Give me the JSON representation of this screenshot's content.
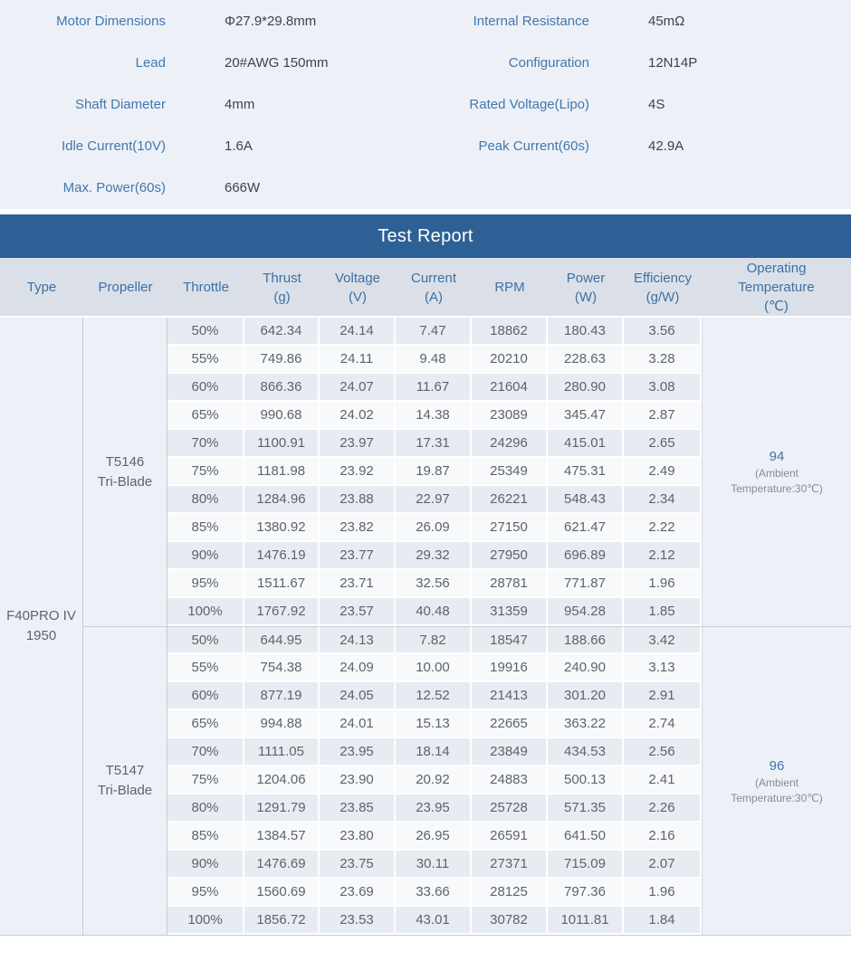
{
  "colors": {
    "accent_blue": "#3f74a9",
    "band_blue": "#2d6094",
    "header_bg": "#dbe0e8",
    "stripe_dark": "#e7ecf2",
    "stripe_light": "#f7f9fb",
    "side_bg": "#edf1f7"
  },
  "specs": {
    "rows": [
      [
        {
          "label": "Motor Dimensions",
          "value": "Φ27.9*29.8mm"
        },
        {
          "label": "Internal Resistance",
          "value": "45mΩ"
        }
      ],
      [
        {
          "label": "Lead",
          "value": "20#AWG 150mm"
        },
        {
          "label": "Configuration",
          "value": "12N14P"
        }
      ],
      [
        {
          "label": "Shaft Diameter",
          "value": "4mm"
        },
        {
          "label": "Rated Voltage(Lipo)",
          "value": "4S"
        }
      ],
      [
        {
          "label": "Idle Current(10V)",
          "value": "1.6A"
        },
        {
          "label": "Peak Current(60s)",
          "value": "42.9A"
        }
      ],
      [
        {
          "label": "Max. Power(60s)",
          "value": "666W"
        },
        null
      ]
    ]
  },
  "table": {
    "title": "Test Report",
    "headers": [
      {
        "lines": [
          "Type"
        ]
      },
      {
        "lines": [
          "Propeller"
        ]
      },
      {
        "lines": [
          "Throttle"
        ]
      },
      {
        "lines": [
          "Thrust",
          "(g)"
        ]
      },
      {
        "lines": [
          "Voltage",
          "(V)"
        ]
      },
      {
        "lines": [
          "Current",
          "(A)"
        ]
      },
      {
        "lines": [
          "RPM"
        ]
      },
      {
        "lines": [
          "Power",
          "(W)"
        ]
      },
      {
        "lines": [
          "Efficiency",
          "(g/W)"
        ]
      },
      {
        "lines": [
          "Operating",
          "Temperature",
          "(℃)"
        ]
      }
    ],
    "type_lines": [
      "F40PRO IV",
      "1950"
    ],
    "blocks": [
      {
        "propeller": [
          "T5146",
          "Tri-Blade"
        ],
        "temperature": {
          "value": "94",
          "notes": [
            "(Ambient",
            "Temperature:30℃)"
          ]
        },
        "rows": [
          [
            "50%",
            "642.34",
            "24.14",
            "7.47",
            "18862",
            "180.43",
            "3.56"
          ],
          [
            "55%",
            "749.86",
            "24.11",
            "9.48",
            "20210",
            "228.63",
            "3.28"
          ],
          [
            "60%",
            "866.36",
            "24.07",
            "11.67",
            "21604",
            "280.90",
            "3.08"
          ],
          [
            "65%",
            "990.68",
            "24.02",
            "14.38",
            "23089",
            "345.47",
            "2.87"
          ],
          [
            "70%",
            "1100.91",
            "23.97",
            "17.31",
            "24296",
            "415.01",
            "2.65"
          ],
          [
            "75%",
            "1181.98",
            "23.92",
            "19.87",
            "25349",
            "475.31",
            "2.49"
          ],
          [
            "80%",
            "1284.96",
            "23.88",
            "22.97",
            "26221",
            "548.43",
            "2.34"
          ],
          [
            "85%",
            "1380.92",
            "23.82",
            "26.09",
            "27150",
            "621.47",
            "2.22"
          ],
          [
            "90%",
            "1476.19",
            "23.77",
            "29.32",
            "27950",
            "696.89",
            "2.12"
          ],
          [
            "95%",
            "1511.67",
            "23.71",
            "32.56",
            "28781",
            "771.87",
            "1.96"
          ],
          [
            "100%",
            "1767.92",
            "23.57",
            "40.48",
            "31359",
            "954.28",
            "1.85"
          ]
        ]
      },
      {
        "propeller": [
          "T5147",
          "Tri-Blade"
        ],
        "temperature": {
          "value": "96",
          "notes": [
            "(Ambient",
            "Temperature:30℃)"
          ]
        },
        "rows": [
          [
            "50%",
            "644.95",
            "24.13",
            "7.82",
            "18547",
            "188.66",
            "3.42"
          ],
          [
            "55%",
            "754.38",
            "24.09",
            "10.00",
            "19916",
            "240.90",
            "3.13"
          ],
          [
            "60%",
            "877.19",
            "24.05",
            "12.52",
            "21413",
            "301.20",
            "2.91"
          ],
          [
            "65%",
            "994.88",
            "24.01",
            "15.13",
            "22665",
            "363.22",
            "2.74"
          ],
          [
            "70%",
            "1111.05",
            "23.95",
            "18.14",
            "23849",
            "434.53",
            "2.56"
          ],
          [
            "75%",
            "1204.06",
            "23.90",
            "20.92",
            "24883",
            "500.13",
            "2.41"
          ],
          [
            "80%",
            "1291.79",
            "23.85",
            "23.95",
            "25728",
            "571.35",
            "2.26"
          ],
          [
            "85%",
            "1384.57",
            "23.80",
            "26.95",
            "26591",
            "641.50",
            "2.16"
          ],
          [
            "90%",
            "1476.69",
            "23.75",
            "30.11",
            "27371",
            "715.09",
            "2.07"
          ],
          [
            "95%",
            "1560.69",
            "23.69",
            "33.66",
            "28125",
            "797.36",
            "1.96"
          ],
          [
            "100%",
            "1856.72",
            "23.53",
            "43.01",
            "30782",
            "1011.81",
            "1.84"
          ]
        ]
      }
    ]
  }
}
